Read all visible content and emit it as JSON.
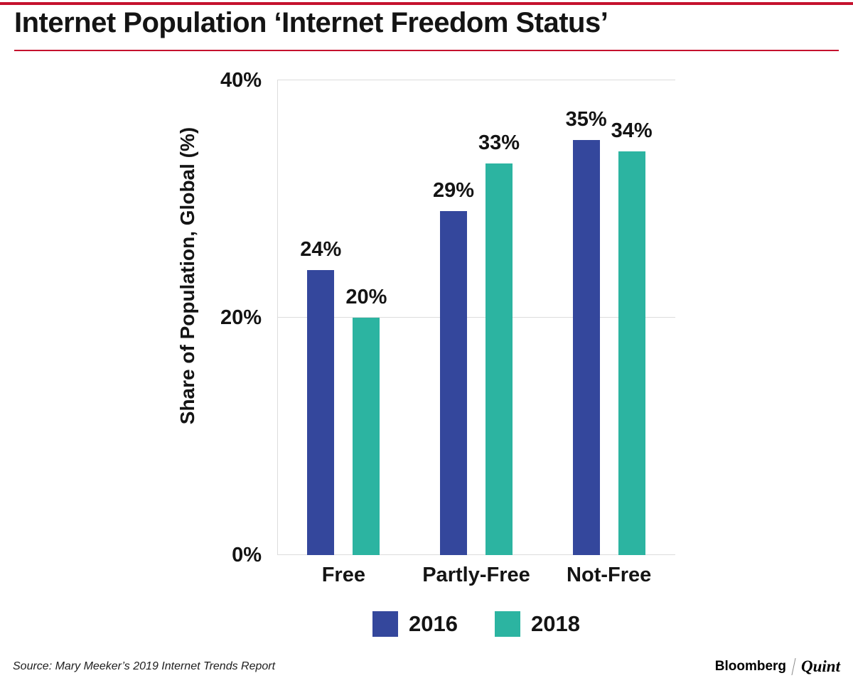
{
  "title": "Internet Population ‘Internet Freedom Status’",
  "source": "Source: Mary Meeker’s 2019 Internet Trends Report",
  "branding": {
    "bloomberg": "Bloomberg",
    "quint": "Quint"
  },
  "colors": {
    "series2016": "#34479C",
    "series2018": "#2CB4A1",
    "accent_red": "#C5122E",
    "grid": "#DCDCDC",
    "text": "#141414"
  },
  "chart_data": {
    "type": "bar",
    "categories": [
      "Free",
      "Partly-Free",
      "Not-Free"
    ],
    "series": [
      {
        "name": "2016",
        "color_key": "series2016",
        "values": [
          24,
          29,
          35
        ]
      },
      {
        "name": "2018",
        "color_key": "series2018",
        "values": [
          20,
          33,
          34
        ]
      }
    ],
    "title": "Internet Population ‘Internet Freedom Status’",
    "xlabel": "",
    "ylabel": "Share of Population, Global (%)",
    "ylim": [
      0,
      40
    ],
    "yticks": [
      0,
      20,
      40
    ],
    "ytick_format": "{v}%",
    "data_label_format": "{v}%",
    "grid": true,
    "legend_position": "bottom"
  }
}
